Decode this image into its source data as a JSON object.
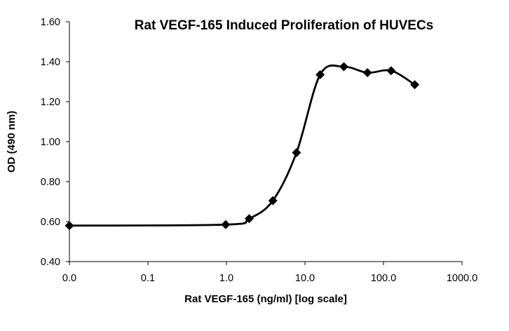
{
  "chart_data": {
    "type": "scatter",
    "title": "Rat VEGF-165 Induced Proliferation of HUVECs",
    "xlabel": "Rat VEGF-165 (ng/ml) [log scale]",
    "ylabel": "OD (490 nm)",
    "x_scale": "log",
    "xlim": [
      0.01,
      1000
    ],
    "ylim": [
      0.4,
      1.6
    ],
    "x_ticks": [
      0.01,
      0.1,
      1,
      10,
      100,
      1000
    ],
    "x_tick_labels": [
      "0.0",
      "0.1",
      "1.0",
      "10.0",
      "100.0",
      "1000.0"
    ],
    "y_ticks": [
      0.4,
      0.6,
      0.8,
      1.0,
      1.2,
      1.4,
      1.6
    ],
    "y_tick_labels": [
      "0.40",
      "0.60",
      "0.80",
      "1.00",
      "1.20",
      "1.40",
      "1.60"
    ],
    "grid": false,
    "legend": "none",
    "smooth_line": true,
    "marker": "diamond",
    "series": [
      {
        "x": [
          0.01,
          0.977,
          1.95,
          3.9,
          7.8,
          15.6,
          31.25,
          62.5,
          125,
          250
        ],
        "y": [
          0.58,
          0.585,
          0.615,
          0.705,
          0.945,
          1.335,
          1.375,
          1.345,
          1.355,
          1.285
        ]
      }
    ]
  }
}
